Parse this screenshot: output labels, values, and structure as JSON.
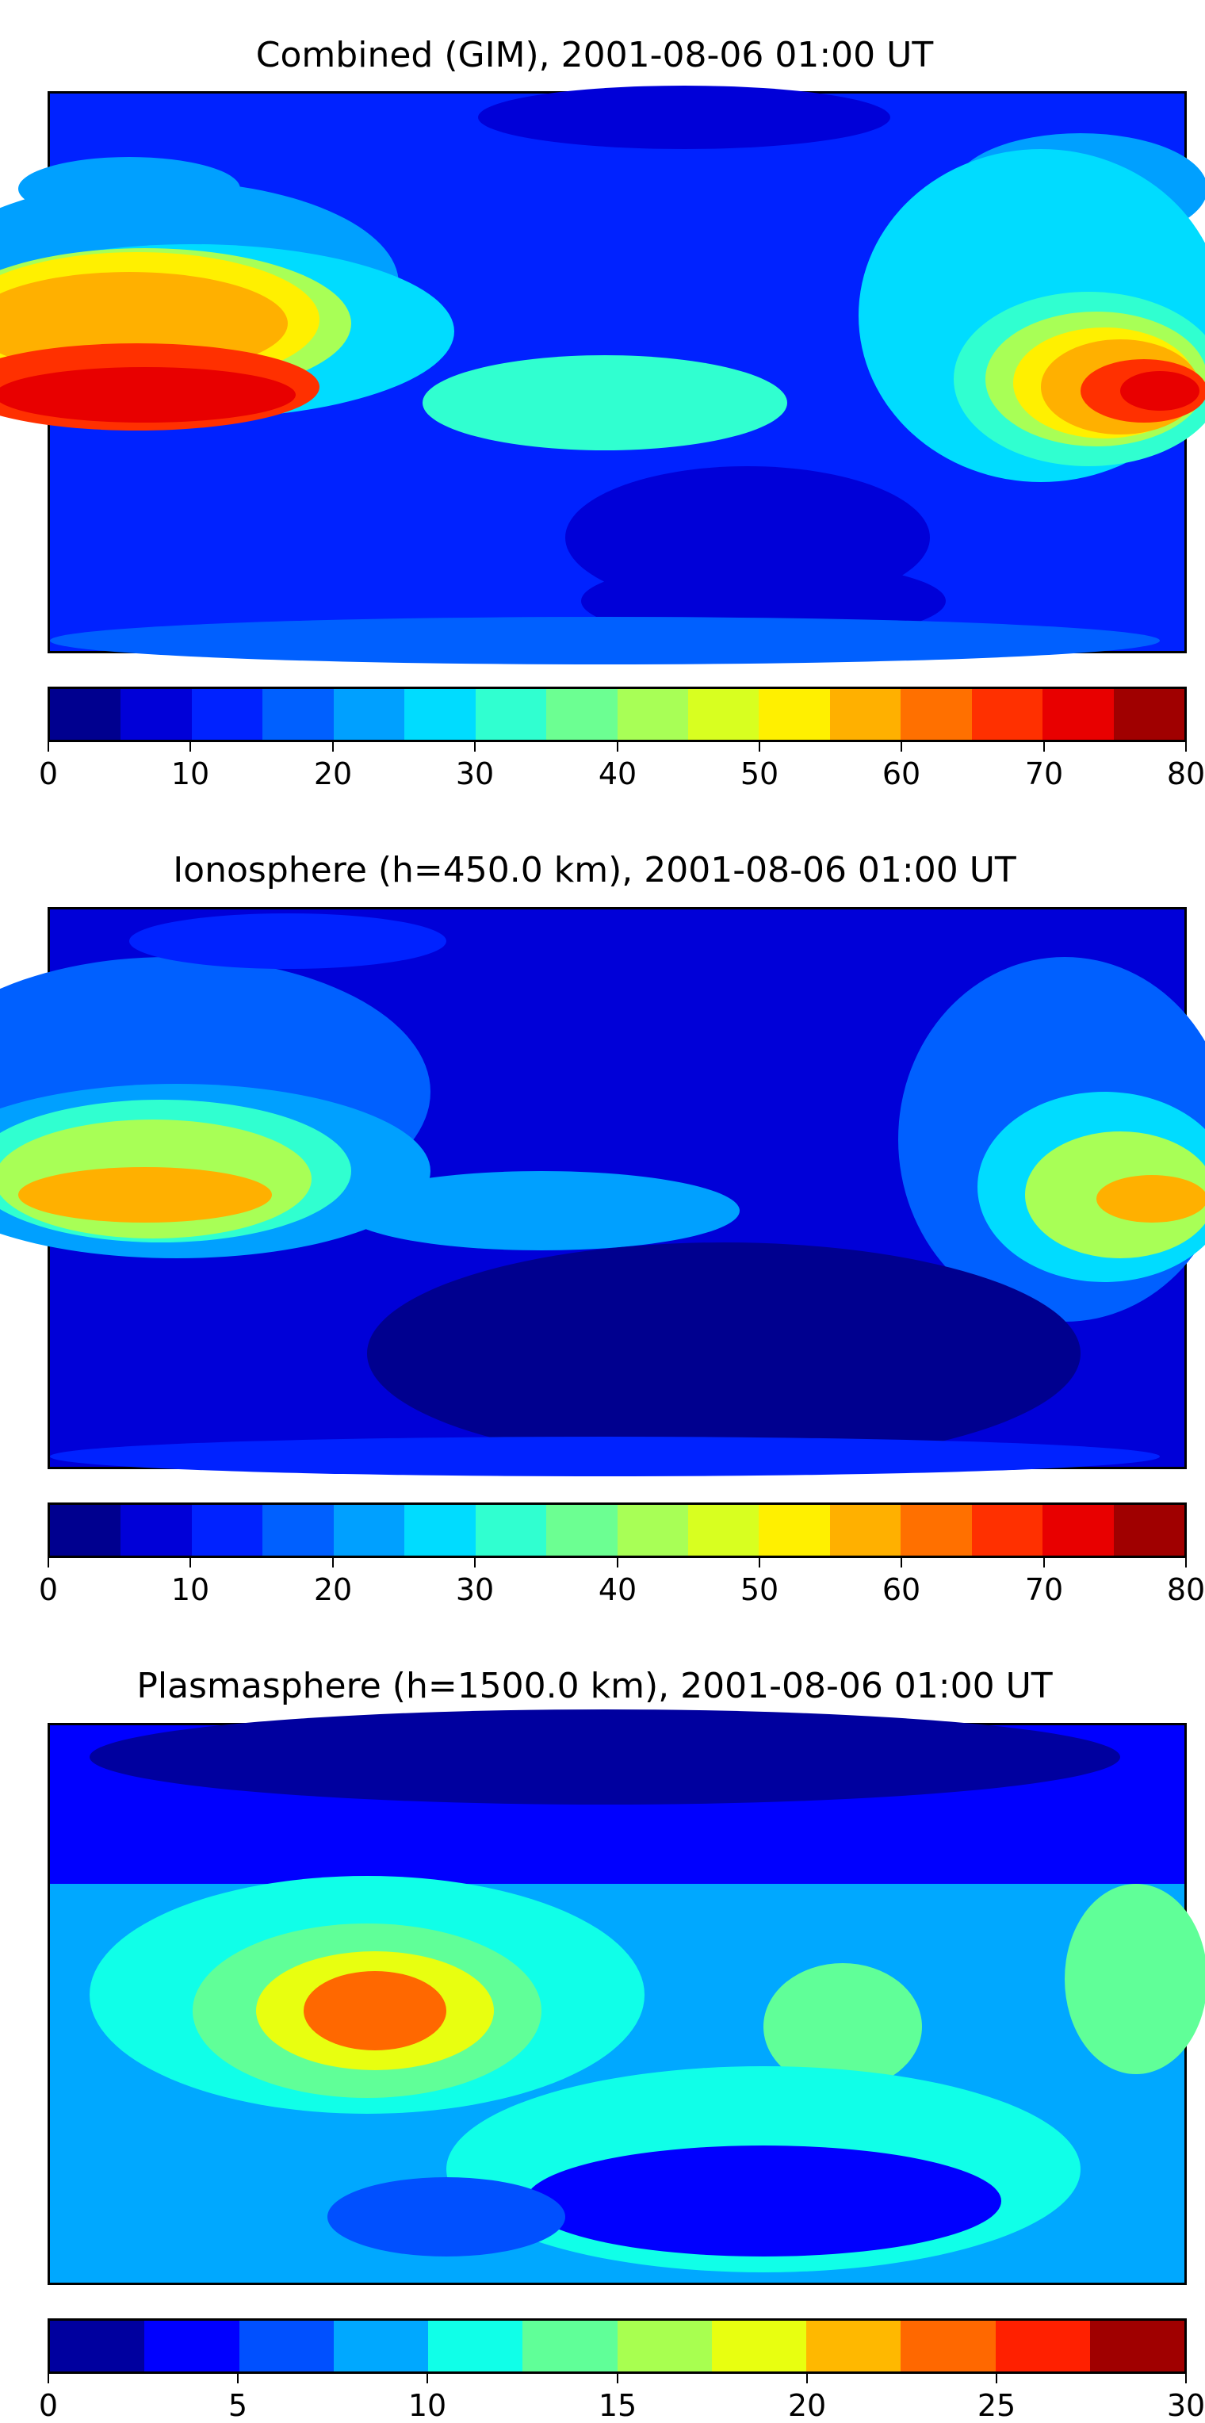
{
  "panels": [
    {
      "id": "combined",
      "title": "Combined (GIM), 2001-08-06 01:00 UT",
      "colorbar": {
        "ticks": [
          "0",
          "10",
          "20",
          "30",
          "40",
          "50",
          "60",
          "70",
          "80"
        ],
        "colors": [
          "#00008f",
          "#0000d8",
          "#0022ff",
          "#0060ff",
          "#00a0ff",
          "#00dcff",
          "#30ffd0",
          "#6cff92",
          "#a8ff56",
          "#d8ff20",
          "#fff000",
          "#ffb000",
          "#ff7000",
          "#ff3000",
          "#e80000",
          "#a00000"
        ]
      }
    },
    {
      "id": "ionosphere",
      "title": "Ionosphere  (h=450.0 km), 2001-08-06 01:00 UT",
      "colorbar": {
        "ticks": [
          "0",
          "10",
          "20",
          "30",
          "40",
          "50",
          "60",
          "70",
          "80"
        ],
        "colors": [
          "#00008f",
          "#0000d8",
          "#0022ff",
          "#0060ff",
          "#00a0ff",
          "#00dcff",
          "#30ffd0",
          "#6cff92",
          "#a8ff56",
          "#d8ff20",
          "#fff000",
          "#ffb000",
          "#ff7000",
          "#ff3000",
          "#e80000",
          "#a00000"
        ]
      }
    },
    {
      "id": "plasmasphere",
      "title": "Plasmasphere (h=1500.0 km), 2001-08-06 01:00 UT",
      "colorbar": {
        "ticks": [
          "0",
          "5",
          "10",
          "15",
          "20",
          "25",
          "30"
        ],
        "colors": [
          "#00009f",
          "#0000ff",
          "#0050ff",
          "#00a8ff",
          "#10ffe8",
          "#60ff98",
          "#a8ff50",
          "#e8ff10",
          "#ffb800",
          "#ff6800",
          "#ff2000",
          "#a00000"
        ]
      }
    }
  ]
}
